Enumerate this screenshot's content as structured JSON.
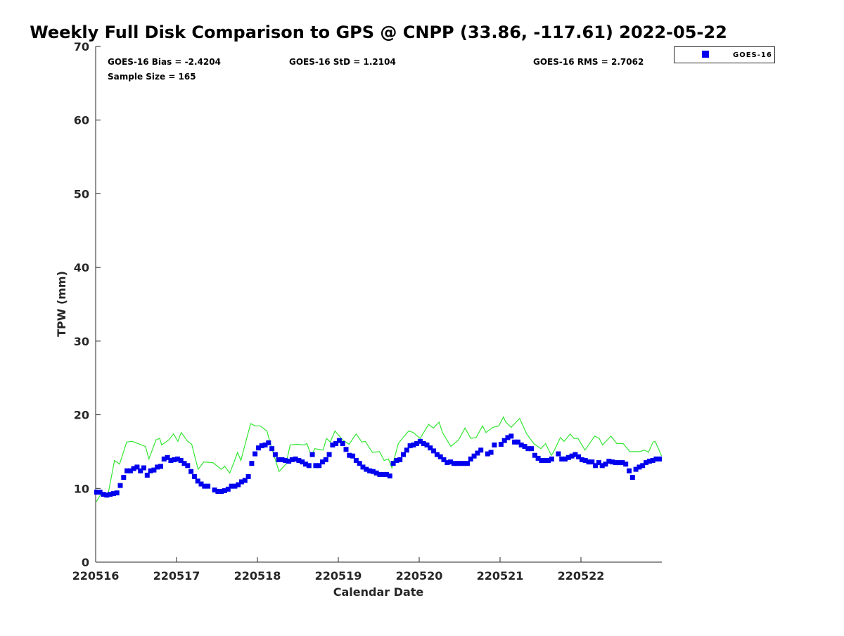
{
  "chart_data": {
    "type": "scatter",
    "title": "Weekly Full Disk Comparison to GPS @ CNPP (33.86, -117.61) 2022-05-22",
    "xlabel": "Calendar Date",
    "ylabel": "TPW (mm)",
    "xlim_hours": [
      0,
      168
    ],
    "ylim": [
      0,
      70
    ],
    "yticks": [
      0,
      10,
      20,
      30,
      40,
      50,
      60,
      70
    ],
    "xticks": [
      {
        "hour": 0,
        "label": "220516"
      },
      {
        "hour": 24,
        "label": "220517"
      },
      {
        "hour": 48,
        "label": "220518"
      },
      {
        "hour": 72,
        "label": "220519"
      },
      {
        "hour": 96,
        "label": "220520"
      },
      {
        "hour": 120,
        "label": "220521"
      },
      {
        "hour": 144,
        "label": "220522"
      }
    ],
    "grid": false,
    "legend": {
      "placement": "top-right outside",
      "entries": [
        "GOES-16"
      ]
    },
    "stats": {
      "bias": "GOES-16 Bias = -2.4204",
      "std": "GOES-16 StD = 1.2104",
      "rms": "GOES-16 RMS = 2.7062",
      "sample": "Sample Size = 165"
    },
    "colors": {
      "goes": "#0000ee",
      "gps": "#33e633"
    },
    "series": [
      {
        "name": "GOES-16",
        "kind": "markers",
        "x_unit": "hours since 220516 00Z (index)",
        "values": [
          9.5,
          9.5,
          9.2,
          9.1,
          9.2,
          9.3,
          9.4,
          10.4,
          11.5,
          12.4,
          12.4,
          12.7,
          12.9,
          12.4,
          12.8,
          11.8,
          12.4,
          12.5,
          12.9,
          13.0,
          14.0,
          14.2,
          13.8,
          13.9,
          14.0,
          13.8,
          13.4,
          13.1,
          12.3,
          11.6,
          11.0,
          10.6,
          10.3,
          10.3,
          null,
          9.8,
          9.6,
          9.6,
          9.7,
          9.9,
          10.3,
          10.3,
          10.5,
          10.9,
          11.1,
          11.6,
          13.4,
          14.7,
          15.5,
          15.8,
          15.9,
          16.2,
          15.4,
          14.6,
          13.9,
          13.9,
          13.8,
          13.7,
          13.9,
          14.0,
          13.8,
          13.6,
          13.3,
          13.1,
          14.6,
          13.1,
          13.1,
          13.6,
          13.9,
          14.6,
          15.9,
          16.1,
          16.5,
          16.1,
          15.3,
          14.5,
          14.4,
          13.8,
          13.4,
          12.9,
          12.6,
          12.4,
          12.3,
          12.1,
          11.9,
          11.9,
          11.9,
          11.7,
          13.4,
          13.8,
          13.9,
          14.6,
          15.2,
          15.8,
          15.9,
          16.1,
          16.4,
          16.1,
          15.9,
          15.5,
          15.1,
          14.6,
          14.3,
          13.9,
          13.5,
          13.6,
          13.4,
          13.4,
          13.4,
          13.4,
          13.4,
          14.0,
          14.4,
          14.8,
          15.2,
          null,
          14.7,
          14.9,
          15.9,
          null,
          16.0,
          16.5,
          16.9,
          17.1,
          16.3,
          16.3,
          15.9,
          15.7,
          15.4,
          15.4,
          14.5,
          14.1,
          13.8,
          13.8,
          13.8,
          14.0,
          null,
          14.7,
          14.0,
          14.0,
          14.2,
          14.4,
          14.6,
          14.3,
          13.9,
          13.8,
          13.6,
          13.6,
          13.1,
          13.5,
          13.1,
          13.3,
          13.7,
          13.6,
          13.5,
          13.5,
          13.5,
          13.3,
          12.4,
          11.5,
          12.6,
          12.9,
          13.1,
          13.5,
          13.7,
          13.8,
          14.0,
          14.0
        ]
      },
      {
        "name": "GPS",
        "kind": "line",
        "points": [
          [
            0.2,
            8.2
          ],
          [
            1.5,
            9.2
          ],
          [
            3.5,
            8.8
          ],
          [
            5.6,
            13.8
          ],
          [
            7.1,
            13.3
          ],
          [
            9.2,
            16.3
          ],
          [
            10.8,
            16.4
          ],
          [
            14.8,
            15.7
          ],
          [
            15.8,
            14.0
          ],
          [
            17.9,
            16.6
          ],
          [
            19.0,
            16.8
          ],
          [
            19.6,
            15.9
          ],
          [
            21.7,
            16.6
          ],
          [
            23.1,
            17.4
          ],
          [
            24.4,
            16.4
          ],
          [
            25.4,
            17.6
          ],
          [
            27.3,
            16.4
          ],
          [
            28.5,
            16.0
          ],
          [
            30.4,
            12.6
          ],
          [
            32.1,
            13.6
          ],
          [
            34.8,
            13.5
          ],
          [
            37.3,
            12.6
          ],
          [
            38.3,
            13.0
          ],
          [
            39.8,
            12.1
          ],
          [
            41.0,
            13.5
          ],
          [
            42.1,
            14.9
          ],
          [
            43.1,
            13.8
          ],
          [
            45.0,
            17.1
          ],
          [
            46.0,
            18.8
          ],
          [
            47.3,
            18.5
          ],
          [
            48.8,
            18.5
          ],
          [
            50.8,
            17.8
          ],
          [
            52.3,
            15.4
          ],
          [
            54.4,
            12.3
          ],
          [
            56.5,
            13.3
          ],
          [
            57.7,
            15.9
          ],
          [
            59.8,
            16.0
          ],
          [
            61.9,
            15.9
          ],
          [
            62.7,
            16.1
          ],
          [
            64.0,
            14.4
          ],
          [
            65.0,
            15.4
          ],
          [
            67.5,
            15.2
          ],
          [
            68.5,
            16.8
          ],
          [
            69.6,
            16.3
          ],
          [
            71.0,
            17.8
          ],
          [
            73.3,
            16.6
          ],
          [
            75.2,
            16.0
          ],
          [
            77.3,
            17.4
          ],
          [
            79.0,
            16.3
          ],
          [
            80.0,
            16.4
          ],
          [
            82.1,
            14.9
          ],
          [
            84.2,
            15.0
          ],
          [
            85.6,
            13.8
          ],
          [
            86.9,
            14.0
          ],
          [
            87.9,
            12.8
          ],
          [
            89.8,
            16.1
          ],
          [
            91.0,
            16.8
          ],
          [
            92.9,
            17.8
          ],
          [
            94.2,
            17.6
          ],
          [
            96.3,
            16.8
          ],
          [
            98.8,
            18.7
          ],
          [
            100.2,
            18.2
          ],
          [
            101.9,
            19.0
          ],
          [
            102.9,
            17.6
          ],
          [
            105.4,
            15.7
          ],
          [
            107.7,
            16.6
          ],
          [
            109.6,
            18.2
          ],
          [
            111.3,
            16.8
          ],
          [
            112.9,
            16.9
          ],
          [
            114.8,
            18.5
          ],
          [
            115.8,
            17.6
          ],
          [
            117.9,
            18.3
          ],
          [
            119.6,
            18.5
          ],
          [
            121.0,
            19.7
          ],
          [
            121.7,
            19.0
          ],
          [
            123.3,
            18.3
          ],
          [
            125.8,
            19.5
          ],
          [
            127.9,
            17.4
          ],
          [
            130.0,
            16.1
          ],
          [
            132.1,
            15.4
          ],
          [
            133.5,
            16.1
          ],
          [
            135.2,
            14.5
          ],
          [
            135.8,
            14.9
          ],
          [
            137.9,
            16.9
          ],
          [
            139.0,
            16.4
          ],
          [
            140.8,
            17.4
          ],
          [
            141.9,
            16.8
          ],
          [
            143.1,
            16.8
          ],
          [
            145.2,
            15.2
          ],
          [
            148.1,
            17.1
          ],
          [
            149.4,
            16.8
          ],
          [
            150.4,
            15.9
          ],
          [
            152.9,
            17.1
          ],
          [
            154.6,
            16.1
          ],
          [
            156.5,
            16.1
          ],
          [
            158.5,
            15.0
          ],
          [
            161.3,
            15.0
          ],
          [
            162.9,
            15.2
          ],
          [
            164.0,
            14.9
          ],
          [
            165.4,
            16.3
          ],
          [
            166.0,
            16.4
          ],
          [
            166.9,
            15.5
          ],
          [
            167.9,
            14.4
          ]
        ]
      }
    ]
  }
}
